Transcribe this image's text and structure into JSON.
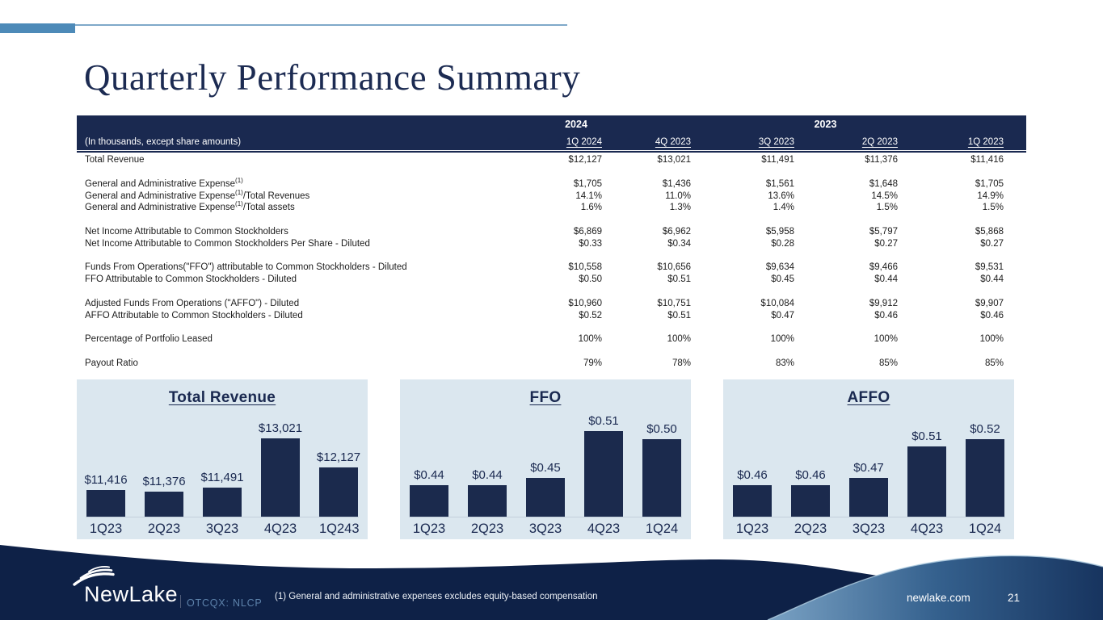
{
  "slide": {
    "title": "Quarterly Performance Summary",
    "logo_text": "NewLake",
    "ticker": "OTCQX: NLCP",
    "footnote": "(1) General and administrative expenses excludes equity-based compensation",
    "website": "newlake.com",
    "page_number": "21"
  },
  "colors": {
    "navy": "#1a2950",
    "bar": "#1b2a4d",
    "chartbg": "#dbe7ef",
    "footer_navy": "#0e2147",
    "accent": "#4d8ab8",
    "ticker_blue": "#5d82ab"
  },
  "table": {
    "note": "(In thousands, except share amounts)",
    "year_groups": [
      {
        "label": "2024",
        "span": 1
      },
      {
        "label": "2023",
        "span": 4
      }
    ],
    "columns": [
      "1Q 2024",
      "4Q 2023",
      "3Q 2023",
      "2Q 2023",
      "1Q 2023"
    ],
    "rows": [
      {
        "label": "Total Revenue",
        "values": [
          "$12,127",
          "$13,021",
          "$11,491",
          "$11,376",
          "$11,416"
        ]
      },
      {
        "spacer": true
      },
      {
        "label": "General and Administrative Expense",
        "sup": "(1)",
        "suffix": "",
        "values": [
          "$1,705",
          "$1,436",
          "$1,561",
          "$1,648",
          "$1,705"
        ]
      },
      {
        "label": "General and Administrative Expense",
        "sup": "(1)",
        "suffix": "/Total Revenues",
        "values": [
          "14.1%",
          "11.0%",
          "13.6%",
          "14.5%",
          "14.9%"
        ]
      },
      {
        "label": "General and Administrative Expense",
        "sup": "(1)",
        "suffix": "/Total assets",
        "values": [
          "1.6%",
          "1.3%",
          "1.4%",
          "1.5%",
          "1.5%"
        ]
      },
      {
        "spacer": true
      },
      {
        "label": "Net Income Attributable to Common Stockholders",
        "values": [
          "$6,869",
          "$6,962",
          "$5,958",
          "$5,797",
          "$5,868"
        ]
      },
      {
        "label": "Net Income Attributable to Common Stockholders Per Share - Diluted",
        "values": [
          "$0.33",
          "$0.34",
          "$0.28",
          "$0.27",
          "$0.27"
        ]
      },
      {
        "spacer": true
      },
      {
        "label": "Funds From Operations(\"FFO\") attributable to Common Stockholders - Diluted",
        "values": [
          "$10,558",
          "$10,656",
          "$9,634",
          "$9,466",
          "$9,531"
        ]
      },
      {
        "label": "FFO Attributable to Common Stockholders - Diluted",
        "values": [
          "$0.50",
          "$0.51",
          "$0.45",
          "$0.44",
          "$0.44"
        ]
      },
      {
        "spacer": true
      },
      {
        "label": "Adjusted Funds From Operations (\"AFFO\") - Diluted",
        "values": [
          "$10,960",
          "$10,751",
          "$10,084",
          "$9,912",
          "$9,907"
        ]
      },
      {
        "label": "AFFO Attributable to Common Stockholders - Diluted",
        "values": [
          "$0.52",
          "$0.51",
          "$0.47",
          "$0.46",
          "$0.46"
        ]
      },
      {
        "spacer": true
      },
      {
        "label": "Percentage of Portfolio Leased",
        "values": [
          "100%",
          "100%",
          "100%",
          "100%",
          "100%"
        ]
      },
      {
        "spacer": true
      },
      {
        "label": "Payout Ratio",
        "values": [
          "79%",
          "78%",
          "83%",
          "85%",
          "85%"
        ]
      }
    ]
  },
  "chart_data": [
    {
      "type": "bar",
      "title": "Total Revenue",
      "categories": [
        "1Q23",
        "2Q23",
        "3Q23",
        "4Q23",
        "1Q243"
      ],
      "values": [
        11416,
        11376,
        11491,
        13021,
        12127
      ],
      "labels": [
        "$11,416",
        "$11,376",
        "$11,491",
        "$13,021",
        "$12,127"
      ],
      "xlabel": "",
      "ylabel": "",
      "ylim": [
        10600,
        13250
      ],
      "grid": false,
      "legend": false
    },
    {
      "type": "bar",
      "title": "FFO",
      "categories": [
        "1Q23",
        "2Q23",
        "3Q23",
        "4Q23",
        "1Q24"
      ],
      "values": [
        0.44,
        0.44,
        0.45,
        0.51,
        0.5
      ],
      "labels": [
        "$0.44",
        "$0.44",
        "$0.45",
        "$0.51",
        "$0.50"
      ],
      "xlabel": "",
      "ylabel": "",
      "ylim": [
        0.4,
        0.51
      ],
      "grid": false,
      "legend": false
    },
    {
      "type": "bar",
      "title": "AFFO",
      "categories": [
        "1Q23",
        "2Q23",
        "3Q23",
        "4Q23",
        "1Q24"
      ],
      "values": [
        0.46,
        0.46,
        0.47,
        0.51,
        0.52
      ],
      "labels": [
        "$0.46",
        "$0.46",
        "$0.47",
        "$0.51",
        "$0.52"
      ],
      "xlabel": "",
      "ylabel": "",
      "ylim": [
        0.42,
        0.53
      ],
      "grid": false,
      "legend": false
    }
  ]
}
